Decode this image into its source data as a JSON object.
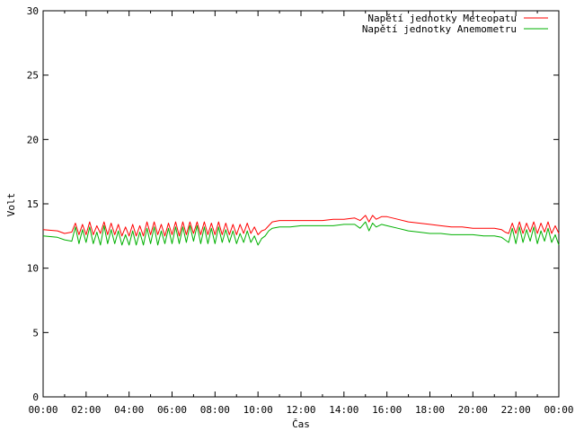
{
  "chart_data": {
    "type": "line",
    "title": "",
    "xlabel": "Čas",
    "ylabel": "Volt",
    "ylim": [
      0,
      30
    ],
    "yticks": [
      0,
      5,
      10,
      15,
      20,
      25,
      30
    ],
    "xlim": [
      "00:00",
      "24:00"
    ],
    "xtick_labels": [
      "00:00",
      "02:00",
      "04:00",
      "06:00",
      "08:00",
      "10:00",
      "12:00",
      "14:00",
      "16:00",
      "18:00",
      "20:00",
      "22:00",
      "00:00"
    ],
    "grid": false,
    "legend_position": "top-right",
    "series": [
      {
        "name": "Napětí jednotky Meteopatu",
        "color": "#ff0000",
        "points": [
          [
            "00:00",
            13.0
          ],
          [
            "00:40",
            12.9
          ],
          [
            "01:00",
            12.7
          ],
          [
            "01:20",
            12.8
          ],
          [
            "01:30",
            13.5
          ],
          [
            "01:40",
            12.6
          ],
          [
            "01:50",
            13.4
          ],
          [
            "02:00",
            12.6
          ],
          [
            "02:10",
            13.6
          ],
          [
            "02:20",
            12.6
          ],
          [
            "02:30",
            13.3
          ],
          [
            "02:40",
            12.7
          ],
          [
            "02:50",
            13.6
          ],
          [
            "03:00",
            12.6
          ],
          [
            "03:10",
            13.5
          ],
          [
            "03:20",
            12.6
          ],
          [
            "03:30",
            13.4
          ],
          [
            "03:40",
            12.5
          ],
          [
            "03:50",
            13.2
          ],
          [
            "04:00",
            12.5
          ],
          [
            "04:10",
            13.4
          ],
          [
            "04:20",
            12.5
          ],
          [
            "04:30",
            13.3
          ],
          [
            "04:40",
            12.5
          ],
          [
            "04:50",
            13.6
          ],
          [
            "05:00",
            12.6
          ],
          [
            "05:10",
            13.6
          ],
          [
            "05:20",
            12.6
          ],
          [
            "05:30",
            13.4
          ],
          [
            "05:40",
            12.5
          ],
          [
            "05:50",
            13.5
          ],
          [
            "06:00",
            12.6
          ],
          [
            "06:10",
            13.6
          ],
          [
            "06:20",
            12.5
          ],
          [
            "06:30",
            13.6
          ],
          [
            "06:40",
            12.6
          ],
          [
            "06:50",
            13.6
          ],
          [
            "07:00",
            12.7
          ],
          [
            "07:10",
            13.6
          ],
          [
            "07:20",
            12.6
          ],
          [
            "07:30",
            13.6
          ],
          [
            "07:40",
            12.6
          ],
          [
            "07:50",
            13.5
          ],
          [
            "08:00",
            12.6
          ],
          [
            "08:10",
            13.6
          ],
          [
            "08:20",
            12.6
          ],
          [
            "08:30",
            13.5
          ],
          [
            "08:40",
            12.6
          ],
          [
            "08:50",
            13.4
          ],
          [
            "09:00",
            12.6
          ],
          [
            "09:10",
            13.4
          ],
          [
            "09:20",
            12.7
          ],
          [
            "09:30",
            13.5
          ],
          [
            "09:40",
            12.7
          ],
          [
            "09:50",
            13.2
          ],
          [
            "10:00",
            12.6
          ],
          [
            "10:10",
            12.9
          ],
          [
            "10:20",
            13.0
          ],
          [
            "10:30",
            13.3
          ],
          [
            "10:40",
            13.6
          ],
          [
            "11:00",
            13.7
          ],
          [
            "11:30",
            13.7
          ],
          [
            "12:00",
            13.7
          ],
          [
            "12:30",
            13.7
          ],
          [
            "13:00",
            13.7
          ],
          [
            "13:30",
            13.8
          ],
          [
            "14:00",
            13.8
          ],
          [
            "14:30",
            13.9
          ],
          [
            "14:45",
            13.7
          ],
          [
            "15:00",
            14.1
          ],
          [
            "15:10",
            13.6
          ],
          [
            "15:20",
            14.1
          ],
          [
            "15:30",
            13.8
          ],
          [
            "15:45",
            14.0
          ],
          [
            "16:00",
            14.0
          ],
          [
            "16:30",
            13.8
          ],
          [
            "17:00",
            13.6
          ],
          [
            "17:30",
            13.5
          ],
          [
            "18:00",
            13.4
          ],
          [
            "18:30",
            13.3
          ],
          [
            "19:00",
            13.2
          ],
          [
            "19:30",
            13.2
          ],
          [
            "20:00",
            13.1
          ],
          [
            "20:30",
            13.1
          ],
          [
            "21:00",
            13.1
          ],
          [
            "21:20",
            13.0
          ],
          [
            "21:30",
            12.8
          ],
          [
            "21:40",
            12.7
          ],
          [
            "21:50",
            13.5
          ],
          [
            "22:00",
            12.7
          ],
          [
            "22:10",
            13.6
          ],
          [
            "22:20",
            12.7
          ],
          [
            "22:30",
            13.5
          ],
          [
            "22:40",
            12.8
          ],
          [
            "22:50",
            13.6
          ],
          [
            "23:00",
            12.7
          ],
          [
            "23:10",
            13.5
          ],
          [
            "23:20",
            12.8
          ],
          [
            "23:30",
            13.6
          ],
          [
            "23:40",
            12.7
          ],
          [
            "23:50",
            13.3
          ],
          [
            "24:00",
            12.7
          ]
        ]
      },
      {
        "name": "Napětí jednotky Anemometru",
        "color": "#00b000",
        "points": [
          [
            "00:00",
            12.5
          ],
          [
            "00:40",
            12.4
          ],
          [
            "01:00",
            12.2
          ],
          [
            "01:20",
            12.1
          ],
          [
            "01:30",
            13.2
          ],
          [
            "01:40",
            11.9
          ],
          [
            "01:50",
            13.0
          ],
          [
            "02:00",
            12.0
          ],
          [
            "02:10",
            13.2
          ],
          [
            "02:20",
            11.9
          ],
          [
            "02:30",
            12.8
          ],
          [
            "02:40",
            11.8
          ],
          [
            "02:50",
            13.3
          ],
          [
            "03:00",
            11.9
          ],
          [
            "03:10",
            13.0
          ],
          [
            "03:20",
            11.9
          ],
          [
            "03:30",
            12.9
          ],
          [
            "03:40",
            11.8
          ],
          [
            "03:50",
            12.6
          ],
          [
            "04:00",
            11.8
          ],
          [
            "04:10",
            12.9
          ],
          [
            "04:20",
            11.8
          ],
          [
            "04:30",
            12.8
          ],
          [
            "04:40",
            11.8
          ],
          [
            "04:50",
            13.1
          ],
          [
            "05:00",
            11.9
          ],
          [
            "05:10",
            13.2
          ],
          [
            "05:20",
            11.8
          ],
          [
            "05:30",
            12.9
          ],
          [
            "05:40",
            11.9
          ],
          [
            "05:50",
            13.1
          ],
          [
            "06:00",
            11.9
          ],
          [
            "06:10",
            13.2
          ],
          [
            "06:20",
            11.9
          ],
          [
            "06:30",
            13.2
          ],
          [
            "06:40",
            12.0
          ],
          [
            "06:50",
            13.3
          ],
          [
            "07:00",
            12.1
          ],
          [
            "07:10",
            13.3
          ],
          [
            "07:20",
            11.9
          ],
          [
            "07:30",
            13.2
          ],
          [
            "07:40",
            11.9
          ],
          [
            "07:50",
            13.1
          ],
          [
            "08:00",
            11.9
          ],
          [
            "08:10",
            13.2
          ],
          [
            "08:20",
            12.0
          ],
          [
            "08:30",
            13.0
          ],
          [
            "08:40",
            12.0
          ],
          [
            "08:50",
            12.9
          ],
          [
            "09:00",
            11.9
          ],
          [
            "09:10",
            12.7
          ],
          [
            "09:20",
            12.0
          ],
          [
            "09:30",
            12.9
          ],
          [
            "09:40",
            12.0
          ],
          [
            "09:50",
            12.5
          ],
          [
            "10:00",
            11.8
          ],
          [
            "10:10",
            12.3
          ],
          [
            "10:20",
            12.5
          ],
          [
            "10:30",
            12.9
          ],
          [
            "10:40",
            13.1
          ],
          [
            "11:00",
            13.2
          ],
          [
            "11:30",
            13.2
          ],
          [
            "12:00",
            13.3
          ],
          [
            "12:30",
            13.3
          ],
          [
            "13:00",
            13.3
          ],
          [
            "13:30",
            13.3
          ],
          [
            "14:00",
            13.4
          ],
          [
            "14:30",
            13.4
          ],
          [
            "14:45",
            13.1
          ],
          [
            "15:00",
            13.6
          ],
          [
            "15:10",
            12.9
          ],
          [
            "15:20",
            13.5
          ],
          [
            "15:30",
            13.2
          ],
          [
            "15:45",
            13.4
          ],
          [
            "16:00",
            13.3
          ],
          [
            "16:30",
            13.1
          ],
          [
            "17:00",
            12.9
          ],
          [
            "17:30",
            12.8
          ],
          [
            "18:00",
            12.7
          ],
          [
            "18:30",
            12.7
          ],
          [
            "19:00",
            12.6
          ],
          [
            "19:30",
            12.6
          ],
          [
            "20:00",
            12.6
          ],
          [
            "20:30",
            12.5
          ],
          [
            "21:00",
            12.5
          ],
          [
            "21:20",
            12.4
          ],
          [
            "21:30",
            12.2
          ],
          [
            "21:40",
            12.0
          ],
          [
            "21:50",
            13.1
          ],
          [
            "22:00",
            11.9
          ],
          [
            "22:10",
            13.2
          ],
          [
            "22:20",
            12.0
          ],
          [
            "22:30",
            13.0
          ],
          [
            "22:40",
            12.1
          ],
          [
            "22:50",
            13.2
          ],
          [
            "23:00",
            11.9
          ],
          [
            "23:10",
            12.9
          ],
          [
            "23:20",
            12.1
          ],
          [
            "23:30",
            13.1
          ],
          [
            "23:40",
            12.0
          ],
          [
            "23:50",
            12.6
          ],
          [
            "24:00",
            11.8
          ]
        ]
      }
    ]
  }
}
